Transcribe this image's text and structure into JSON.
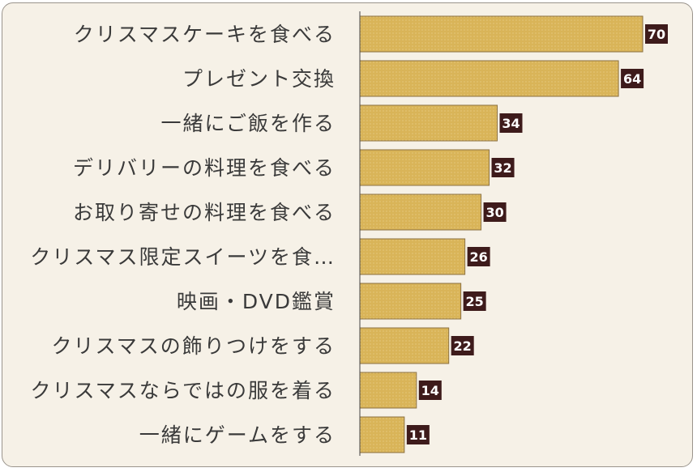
{
  "chart_data": {
    "type": "bar",
    "orientation": "horizontal",
    "categories": [
      "クリスマスケーキを食べる",
      "プレゼント交換",
      "一緒にご飯を作る",
      "デリバリーの料理を食べる",
      "お取り寄せの料理を食べる",
      "クリスマス限定スイーツを食…",
      "映画・DVD鑑賞",
      "クリスマスの飾りつけをする",
      "クリスマスならではの服を着る",
      "一緒にゲームをする"
    ],
    "values": [
      70,
      64,
      34,
      32,
      30,
      26,
      25,
      22,
      14,
      11
    ],
    "xlim": [
      0,
      70
    ],
    "grid": false,
    "data_labels": true,
    "colors": {
      "bar": "#d9b458",
      "bar_border": "#8c7142",
      "label_bg": "#3e1b1b",
      "label_text": "#ffffff",
      "text": "#3a3a3a",
      "background": "#f6f1e7"
    }
  }
}
